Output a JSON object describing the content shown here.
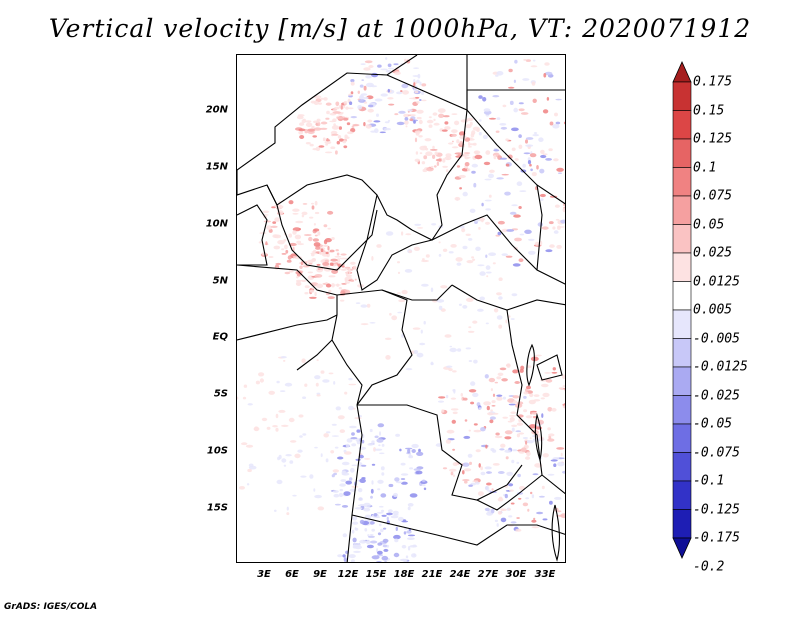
{
  "title": "Vertical velocity [m/s] at 1000hPa, VT: 2020071912",
  "footer": "GrADS: IGES/COLA",
  "map": {
    "lat_labels": [
      "20N",
      "15N",
      "10N",
      "5N",
      "EQ",
      "5S",
      "10S",
      "15S"
    ],
    "lon_labels": [
      "3E",
      "6E",
      "9E",
      "12E",
      "15E",
      "18E",
      "21E",
      "24E",
      "27E",
      "30E",
      "33E"
    ]
  },
  "colorbar": {
    "levels": [
      "0.175",
      "0.15",
      "0.125",
      "0.1",
      "0.075",
      "0.05",
      "0.025",
      "0.0125",
      "0.005",
      "-0.005",
      "-0.0125",
      "-0.025",
      "-0.05",
      "-0.075",
      "-0.1",
      "-0.125",
      "-0.175",
      "-0.2"
    ],
    "colors": [
      "#a51e1e",
      "#c83232",
      "#dc4646",
      "#e66464",
      "#f08282",
      "#f5a0a0",
      "#fac3c3",
      "#fde2e2",
      "#ffffff",
      "#e6e6fc",
      "#c8c8f8",
      "#aaaaf2",
      "#8c8cec",
      "#6e6ee4",
      "#5050d8",
      "#3232c8",
      "#1e1eb4",
      "#0f0f96"
    ]
  }
}
